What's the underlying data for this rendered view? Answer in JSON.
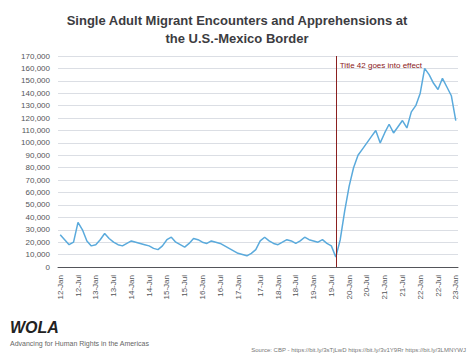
{
  "chart_data": {
    "type": "line",
    "title": "Single Adult Migrant Encounters and Apprehensions at\nthe U.S.-Mexico Border",
    "categories": [
      "12-Jan",
      null,
      null,
      null,
      "12-Jul",
      null,
      null,
      null,
      "13-Jan",
      null,
      null,
      null,
      "13-Jul",
      null,
      null,
      null,
      "14-Jan",
      null,
      null,
      null,
      "14-Jul",
      null,
      null,
      null,
      "15-Jan",
      null,
      null,
      null,
      "15-Jul",
      null,
      null,
      null,
      "16-Jan",
      null,
      null,
      null,
      "16-Jul",
      null,
      null,
      null,
      "17-Jan",
      null,
      null,
      null,
      null,
      "17-Jul",
      null,
      null,
      null,
      "18-Jan",
      null,
      null,
      null,
      "18-Jul",
      null,
      null,
      null,
      "19-Jan",
      null,
      null,
      null,
      "19-Jul",
      null,
      null,
      null,
      "20-Jan",
      null,
      null,
      null,
      "20-Jul",
      null,
      null,
      null,
      "21-Jan",
      null,
      null,
      null,
      "21-Jul",
      null,
      null,
      null,
      "22-Jan",
      null,
      null,
      null,
      "22-Jul",
      null,
      null,
      null,
      "23-Jan"
    ],
    "values": [
      26000,
      22000,
      18000,
      20000,
      36000,
      30000,
      21000,
      17000,
      18000,
      22000,
      27000,
      23000,
      20000,
      18000,
      17000,
      19000,
      21000,
      20000,
      19000,
      18000,
      17000,
      15000,
      14000,
      17000,
      22000,
      24000,
      20000,
      18000,
      16000,
      19000,
      23000,
      22000,
      20000,
      19000,
      21000,
      20000,
      19000,
      17000,
      15000,
      13000,
      11000,
      10000,
      9000,
      11000,
      14000,
      21000,
      24000,
      21000,
      19000,
      18000,
      20000,
      22000,
      21000,
      19000,
      21000,
      24000,
      22000,
      21000,
      20000,
      22000,
      19000,
      17000,
      8000,
      22000,
      45000,
      65000,
      80000,
      90000,
      95000,
      100000,
      105000,
      110000,
      100000,
      108000,
      115000,
      108000,
      113000,
      118000,
      112000,
      125000,
      130000,
      140000,
      160000,
      155000,
      148000,
      143000,
      152000,
      145000,
      138000,
      118000
    ],
    "color": "#5aaadc",
    "ylim": [
      0,
      170000
    ],
    "yticks": [
      0,
      {
        "value": 10000,
        "label": "10,000"
      },
      {
        "value": 20000,
        "label": "20,000"
      },
      {
        "value": 30000,
        "label": "30,000"
      },
      {
        "value": 40000,
        "label": "40,000"
      },
      {
        "value": 50000,
        "label": "50,000"
      },
      {
        "value": 60000,
        "label": "60,000"
      },
      {
        "value": 70000,
        "label": "70,000"
      },
      {
        "value": 80000,
        "label": "80,000"
      },
      {
        "value": 90000,
        "label": "90,000"
      },
      {
        "value": 100000,
        "label": "100,000"
      },
      {
        "value": 110000,
        "label": "110,000"
      },
      {
        "value": 120000,
        "label": "120,000"
      },
      {
        "value": 130000,
        "label": "130,000"
      },
      {
        "value": 140000,
        "label": "140,000"
      },
      {
        "value": 150000,
        "label": "150,000"
      },
      {
        "value": 160000,
        "label": "160,000"
      },
      {
        "value": 170000,
        "label": "170,000"
      }
    ],
    "grid": true,
    "annotations": [
      {
        "text": "Title 42 goes into effect",
        "x": 62,
        "y": 162000,
        "color": "#8b2020"
      }
    ],
    "logo": "WOLA",
    "tagline": "Advancing for Human Rights in the Americas",
    "source": "Source: CBP - https://bit.ly/3sTjLwD https://bit.ly/3v1Y9Rr https://bit.ly/3LMNYWJ"
  }
}
